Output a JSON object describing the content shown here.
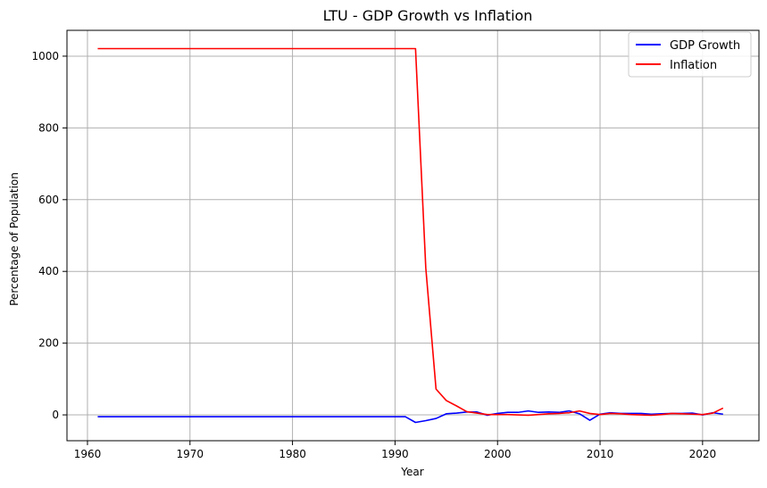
{
  "chart_data": {
    "type": "line",
    "title": "LTU - GDP Growth vs Inflation",
    "xlabel": "Year",
    "ylabel": "Percentage of Population",
    "xlim": [
      1958,
      2025.5
    ],
    "ylim": [
      -72,
      1072
    ],
    "xticks": [
      1960,
      1970,
      1980,
      1990,
      2000,
      2010,
      2020
    ],
    "yticks": [
      0,
      200,
      400,
      600,
      800,
      1000
    ],
    "grid": true,
    "legend_position": "top-right",
    "series": [
      {
        "name": "GDP Growth",
        "color": "#0000ff",
        "points": [
          [
            1961,
            -5
          ],
          [
            1991,
            -5
          ],
          [
            1992,
            -21
          ],
          [
            1993,
            -16
          ],
          [
            1994,
            -10
          ],
          [
            1995,
            3
          ],
          [
            1996,
            5
          ],
          [
            1997,
            8
          ],
          [
            1998,
            8
          ],
          [
            1999,
            -1
          ],
          [
            2000,
            4
          ],
          [
            2001,
            7
          ],
          [
            2002,
            7
          ],
          [
            2003,
            11
          ],
          [
            2004,
            7
          ],
          [
            2005,
            8
          ],
          [
            2006,
            7
          ],
          [
            2007,
            11
          ],
          [
            2008,
            3
          ],
          [
            2009,
            -15
          ],
          [
            2010,
            2
          ],
          [
            2011,
            6
          ],
          [
            2012,
            4
          ],
          [
            2013,
            4
          ],
          [
            2014,
            4
          ],
          [
            2015,
            2
          ],
          [
            2016,
            3
          ],
          [
            2017,
            4
          ],
          [
            2018,
            4
          ],
          [
            2019,
            5
          ],
          [
            2020,
            0
          ],
          [
            2021,
            6
          ],
          [
            2022,
            2
          ]
        ]
      },
      {
        "name": "Inflation",
        "color": "#ff0000",
        "points": [
          [
            1961,
            1021
          ],
          [
            1991,
            1021
          ],
          [
            1992,
            1021
          ],
          [
            1993,
            410
          ],
          [
            1994,
            72
          ],
          [
            1995,
            40
          ],
          [
            1996,
            25
          ],
          [
            1997,
            9
          ],
          [
            1998,
            5
          ],
          [
            1999,
            1
          ],
          [
            2000,
            1
          ],
          [
            2001,
            1
          ],
          [
            2002,
            0
          ],
          [
            2003,
            -1
          ],
          [
            2004,
            1
          ],
          [
            2005,
            3
          ],
          [
            2006,
            4
          ],
          [
            2007,
            6
          ],
          [
            2008,
            11
          ],
          [
            2009,
            4
          ],
          [
            2010,
            1
          ],
          [
            2011,
            4
          ],
          [
            2012,
            3
          ],
          [
            2013,
            1
          ],
          [
            2014,
            0
          ],
          [
            2015,
            -1
          ],
          [
            2016,
            1
          ],
          [
            2017,
            4
          ],
          [
            2018,
            3
          ],
          [
            2019,
            2
          ],
          [
            2020,
            1
          ],
          [
            2021,
            5
          ],
          [
            2022,
            19
          ]
        ]
      }
    ]
  }
}
